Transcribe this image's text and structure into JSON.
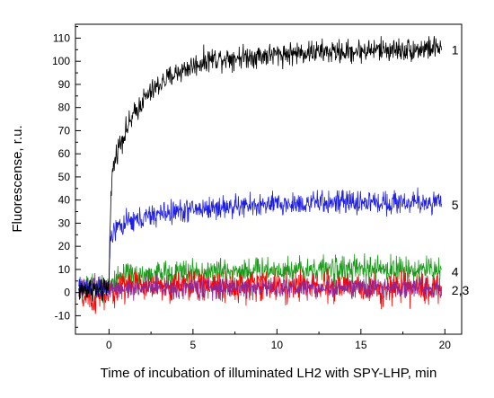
{
  "chart_data": {
    "type": "line",
    "xlabel": "Time of incubation of illuminated LH2 with SPY-LHP, min",
    "ylabel": "Fluorescense, r.u.",
    "xlim": [
      -2,
      21
    ],
    "ylim": [
      -18,
      116
    ],
    "xticks": [
      0,
      5,
      10,
      15,
      20
    ],
    "yticks": [
      -10,
      0,
      10,
      20,
      30,
      40,
      50,
      60,
      70,
      80,
      90,
      100,
      110
    ],
    "grid": false,
    "legend": "none",
    "series": [
      {
        "name": "1",
        "color": "#000000",
        "x": [
          -1.8,
          -1,
          -0.5,
          0,
          0.05,
          0.2,
          0.5,
          1,
          1.5,
          2,
          3,
          4,
          5,
          6,
          8,
          10,
          12,
          14,
          16,
          18,
          19.8
        ],
        "y": [
          1,
          2,
          0,
          3,
          30,
          52,
          62,
          70,
          77,
          83,
          90,
          95,
          98,
          101,
          102,
          103,
          104,
          104,
          105,
          105,
          106
        ],
        "noise": 2.5
      },
      {
        "name": "5",
        "color": "#1f1fe0",
        "x": [
          -1.8,
          -1,
          -0.5,
          0,
          0.05,
          0.2,
          0.5,
          1,
          2,
          3,
          5,
          7,
          10,
          13,
          16,
          19.8
        ],
        "y": [
          2,
          3,
          1,
          3,
          18,
          25,
          28,
          30,
          32,
          34,
          36,
          37,
          38,
          39,
          39,
          39
        ],
        "noise": 2.5
      },
      {
        "name": "4",
        "color": "#1a9a1a",
        "x": [
          -1.8,
          -1,
          0,
          0.5,
          1,
          3,
          6,
          10,
          15,
          19.8
        ],
        "y": [
          1,
          2,
          3,
          5,
          7,
          8,
          9,
          10,
          10,
          10
        ],
        "noise": 2.8
      },
      {
        "name": "2,3",
        "color": "#ff0000",
        "x": [
          -1.8,
          -1,
          0,
          0.5,
          1,
          3,
          6,
          10,
          15,
          19.8
        ],
        "y": [
          -2,
          -3,
          -1,
          2,
          3,
          3,
          3,
          3,
          2,
          2
        ],
        "noise": 3.2
      },
      {
        "name": "2,3",
        "color": "#8a2a9a",
        "x": [
          -1.8,
          -1,
          0,
          0.5,
          1,
          3,
          6,
          10,
          15,
          19.8
        ],
        "y": [
          2,
          3,
          2,
          2,
          2,
          2,
          2,
          2,
          2,
          2
        ],
        "noise": 2.2
      }
    ],
    "curve_labels": [
      {
        "text": "1",
        "x": 20.4,
        "y": 105
      },
      {
        "text": "5",
        "x": 20.4,
        "y": 38
      },
      {
        "text": "4",
        "x": 20.4,
        "y": 9
      },
      {
        "text": "2,3",
        "x": 20.4,
        "y": 1
      }
    ]
  }
}
